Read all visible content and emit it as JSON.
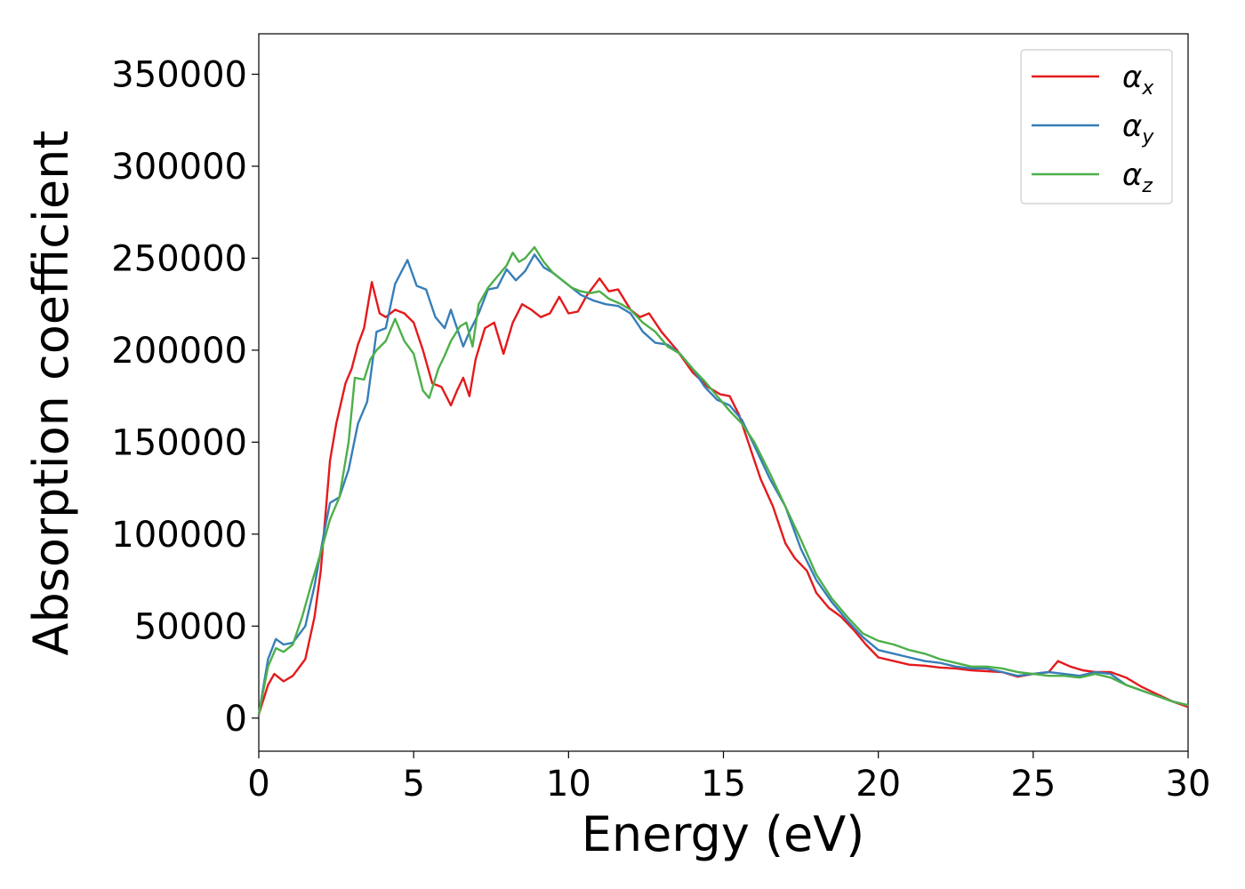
{
  "chart_data": {
    "type": "line",
    "xlabel": "Energy (eV)",
    "ylabel": "Absorption coefficient",
    "xlim": [
      0,
      30
    ],
    "ylim": [
      -18000,
      372000
    ],
    "xticks": [
      0,
      5,
      10,
      15,
      20,
      25,
      30
    ],
    "xtick_labels": [
      "0",
      "5",
      "10",
      "15",
      "20",
      "25",
      "30"
    ],
    "yticks": [
      0,
      50000,
      100000,
      150000,
      200000,
      250000,
      300000,
      350000
    ],
    "ytick_labels": [
      "0",
      "50000",
      "100000",
      "150000",
      "200000",
      "250000",
      "300000",
      "350000"
    ],
    "grid": false,
    "legend_position": "top-right",
    "series": [
      {
        "name": "αx",
        "legend_symbol": "α",
        "legend_subscript": "x",
        "color": "#e41a1c",
        "x": [
          0,
          0.3,
          0.5,
          0.8,
          1.1,
          1.5,
          1.8,
          2.0,
          2.3,
          2.5,
          2.8,
          3.0,
          3.2,
          3.4,
          3.65,
          3.9,
          4.1,
          4.4,
          4.7,
          5.0,
          5.3,
          5.6,
          5.9,
          6.2,
          6.4,
          6.6,
          6.8,
          7.0,
          7.3,
          7.6,
          7.9,
          8.2,
          8.5,
          8.8,
          9.1,
          9.4,
          9.7,
          10.0,
          10.3,
          10.6,
          11.0,
          11.3,
          11.6,
          12.0,
          12.3,
          12.6,
          13.0,
          13.5,
          14.0,
          14.5,
          14.9,
          15.2,
          15.5,
          15.8,
          16.2,
          16.6,
          17.0,
          17.3,
          17.7,
          18.0,
          18.4,
          18.8,
          19.2,
          19.6,
          20.0,
          20.5,
          21.0,
          21.5,
          22.0,
          22.5,
          23.0,
          23.5,
          24.0,
          24.5,
          25.0,
          25.5,
          25.8,
          26.2,
          26.6,
          27.0,
          27.5,
          28.0,
          28.5,
          29.0,
          29.5,
          30.0
        ],
        "y": [
          2000,
          18000,
          24000,
          20000,
          23000,
          32000,
          55000,
          80000,
          140000,
          160000,
          182000,
          190000,
          203000,
          212000,
          237000,
          220000,
          218000,
          222000,
          220000,
          215000,
          200000,
          182000,
          180000,
          170000,
          178000,
          185000,
          175000,
          195000,
          212000,
          215000,
          198000,
          215000,
          225000,
          222000,
          218000,
          220000,
          229000,
          220000,
          221000,
          230000,
          239000,
          232000,
          233000,
          222000,
          218000,
          220000,
          210000,
          200000,
          188000,
          180000,
          176000,
          175000,
          165000,
          150000,
          130000,
          115000,
          95000,
          87000,
          80000,
          68000,
          60000,
          55000,
          48000,
          40000,
          33000,
          31000,
          29000,
          28500,
          27500,
          27000,
          26000,
          25500,
          25000,
          22500,
          24000,
          25000,
          31000,
          28000,
          26000,
          25000,
          25000,
          22000,
          17000,
          13000,
          9000,
          6000
        ]
      },
      {
        "name": "αy",
        "legend_symbol": "α",
        "legend_subscript": "y",
        "color": "#377eb8",
        "x": [
          0,
          0.3,
          0.55,
          0.8,
          1.1,
          1.5,
          1.8,
          2.1,
          2.3,
          2.6,
          2.9,
          3.2,
          3.5,
          3.8,
          4.1,
          4.4,
          4.8,
          5.1,
          5.4,
          5.7,
          6.0,
          6.2,
          6.4,
          6.6,
          6.8,
          7.1,
          7.4,
          7.7,
          8.0,
          8.3,
          8.6,
          8.9,
          9.2,
          9.5,
          9.8,
          10.1,
          10.4,
          10.8,
          11.2,
          11.6,
          12.0,
          12.4,
          12.8,
          13.2,
          13.6,
          14.0,
          14.4,
          14.8,
          15.2,
          15.6,
          16.0,
          16.5,
          17.0,
          17.5,
          18.0,
          18.5,
          19.0,
          19.5,
          20.0,
          20.5,
          21.0,
          21.5,
          22.0,
          22.5,
          23.0,
          23.5,
          24.0,
          24.5,
          25.0,
          25.5,
          26.0,
          26.5,
          27.0,
          27.5,
          28.0,
          28.5,
          29.0,
          29.5,
          30.0
        ],
        "y": [
          2000,
          32000,
          43000,
          40000,
          41000,
          50000,
          72000,
          100000,
          117000,
          120000,
          135000,
          160000,
          172000,
          210000,
          212000,
          236000,
          249000,
          235000,
          233000,
          218000,
          212000,
          222000,
          212000,
          202000,
          210000,
          220000,
          233000,
          234000,
          244000,
          238000,
          243000,
          252000,
          245000,
          242000,
          238000,
          234000,
          230000,
          227000,
          225000,
          224000,
          220000,
          210000,
          204000,
          203000,
          198000,
          190000,
          180000,
          173000,
          170000,
          162000,
          148000,
          130000,
          115000,
          92000,
          75000,
          63000,
          53000,
          44000,
          37000,
          35000,
          33000,
          31000,
          30000,
          28000,
          27000,
          27000,
          25000,
          23000,
          24000,
          25000,
          24000,
          23000,
          25000,
          24000,
          18000,
          15000,
          12000,
          9000,
          7000
        ]
      },
      {
        "name": "αz",
        "legend_symbol": "α",
        "legend_subscript": "z",
        "color": "#4daf4a",
        "x": [
          0,
          0.3,
          0.55,
          0.8,
          1.1,
          1.4,
          1.7,
          2.0,
          2.3,
          2.6,
          2.9,
          3.1,
          3.4,
          3.6,
          3.8,
          4.1,
          4.4,
          4.7,
          5.0,
          5.3,
          5.5,
          5.8,
          6.0,
          6.2,
          6.5,
          6.7,
          6.9,
          7.1,
          7.4,
          7.7,
          8.0,
          8.2,
          8.4,
          8.6,
          8.9,
          9.2,
          9.5,
          9.8,
          10.1,
          10.4,
          10.7,
          11.0,
          11.3,
          11.7,
          12.0,
          12.4,
          12.8,
          13.2,
          13.6,
          14.0,
          14.4,
          14.8,
          15.2,
          15.6,
          16.0,
          16.5,
          17.0,
          17.5,
          18.0,
          18.5,
          19.0,
          19.5,
          20.0,
          20.5,
          21.0,
          21.5,
          22.0,
          22.5,
          23.0,
          23.5,
          24.0,
          24.5,
          25.0,
          25.5,
          26.0,
          26.5,
          27.0,
          27.5,
          28.0,
          28.5,
          29.0,
          29.5,
          30.0
        ],
        "y": [
          2000,
          28000,
          38000,
          36000,
          40000,
          55000,
          73000,
          90000,
          108000,
          120000,
          150000,
          185000,
          184000,
          195000,
          200000,
          205000,
          217000,
          205000,
          198000,
          178000,
          174000,
          190000,
          197000,
          205000,
          213000,
          215000,
          202000,
          225000,
          234000,
          240000,
          246000,
          253000,
          248000,
          250000,
          256000,
          248000,
          242000,
          238000,
          234000,
          232000,
          231000,
          232000,
          228000,
          225000,
          222000,
          215000,
          210000,
          202000,
          198000,
          190000,
          183000,
          175000,
          167000,
          160000,
          150000,
          133000,
          115000,
          97000,
          78000,
          65000,
          55000,
          46000,
          42000,
          40000,
          37000,
          35000,
          32000,
          30000,
          28000,
          28000,
          27000,
          25000,
          24000,
          23000,
          23000,
          22000,
          24000,
          22000,
          18000,
          15000,
          12000,
          9000,
          7000
        ]
      }
    ]
  }
}
